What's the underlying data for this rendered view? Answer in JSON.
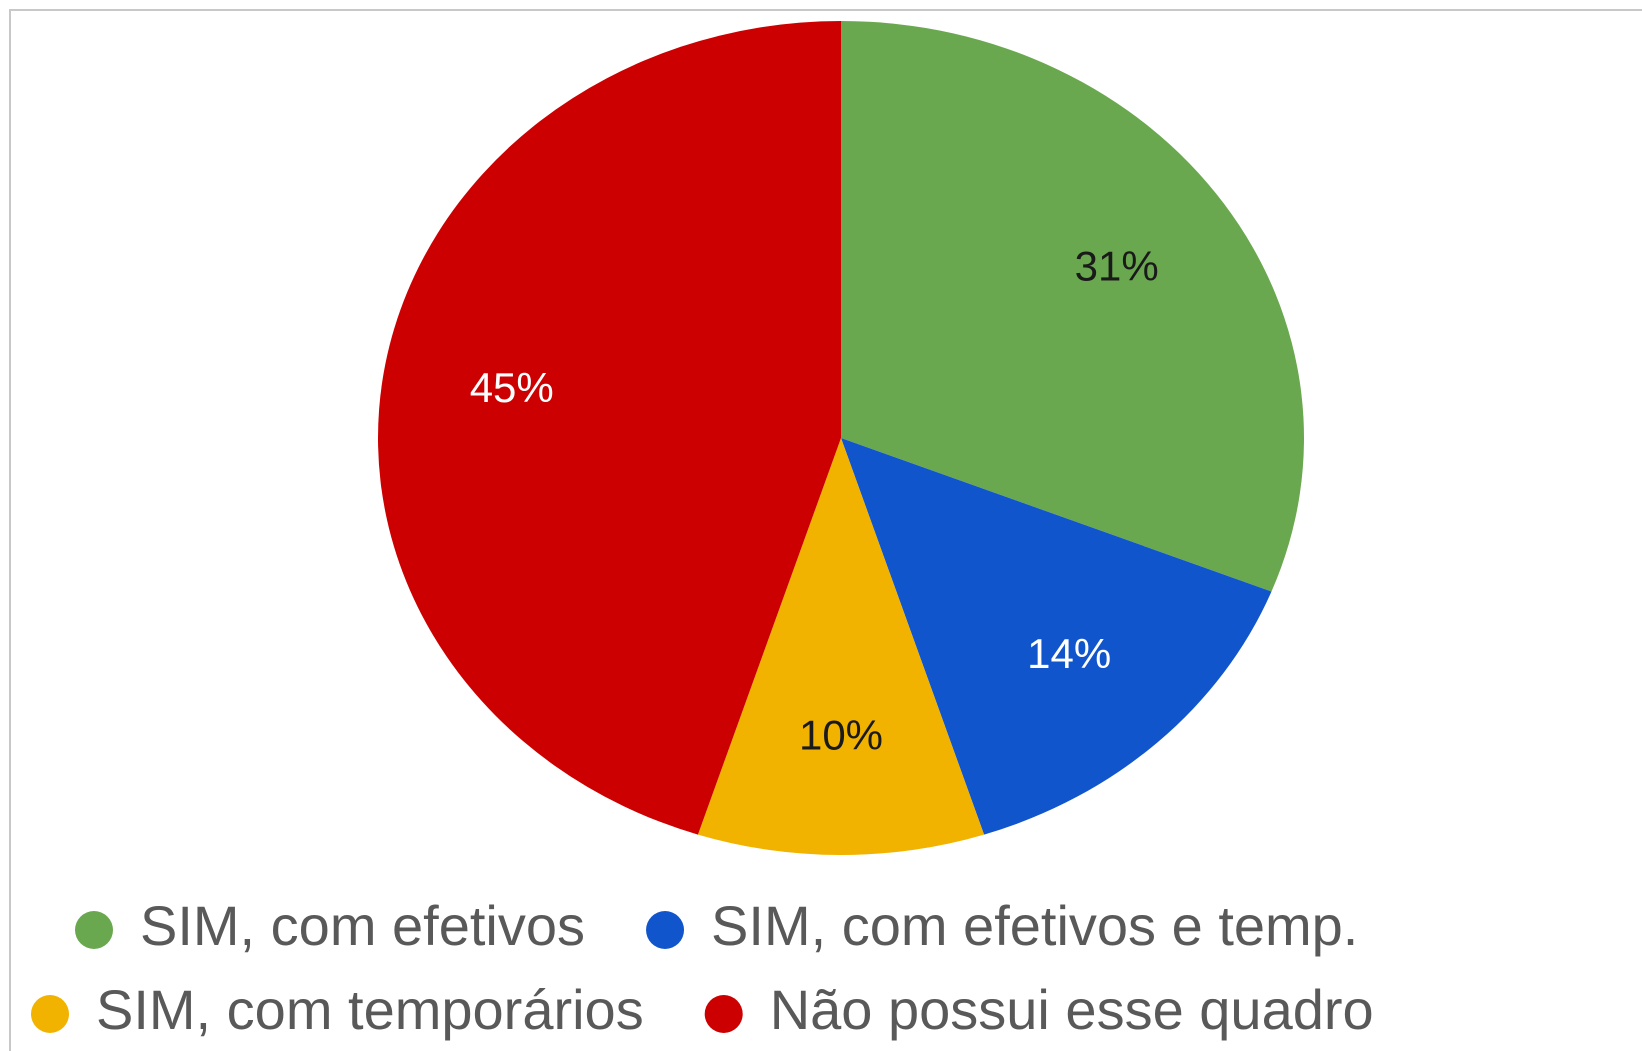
{
  "chart_data": {
    "type": "pie",
    "categories": [
      "SIM, com efetivos",
      "SIM, com efetivos e temp.",
      "SIM, com temporários",
      "Não possui esse quadro"
    ],
    "values": [
      31,
      14,
      10,
      45
    ],
    "value_labels": [
      "31%",
      "14%",
      "10%",
      "45%"
    ],
    "colors": [
      "#6aa84f",
      "#1155cc",
      "#f1b300",
      "#cc0000"
    ],
    "label_colors": [
      "#1a1a1a",
      "#ffffff",
      "#1a1a1a",
      "#ffffff"
    ]
  }
}
